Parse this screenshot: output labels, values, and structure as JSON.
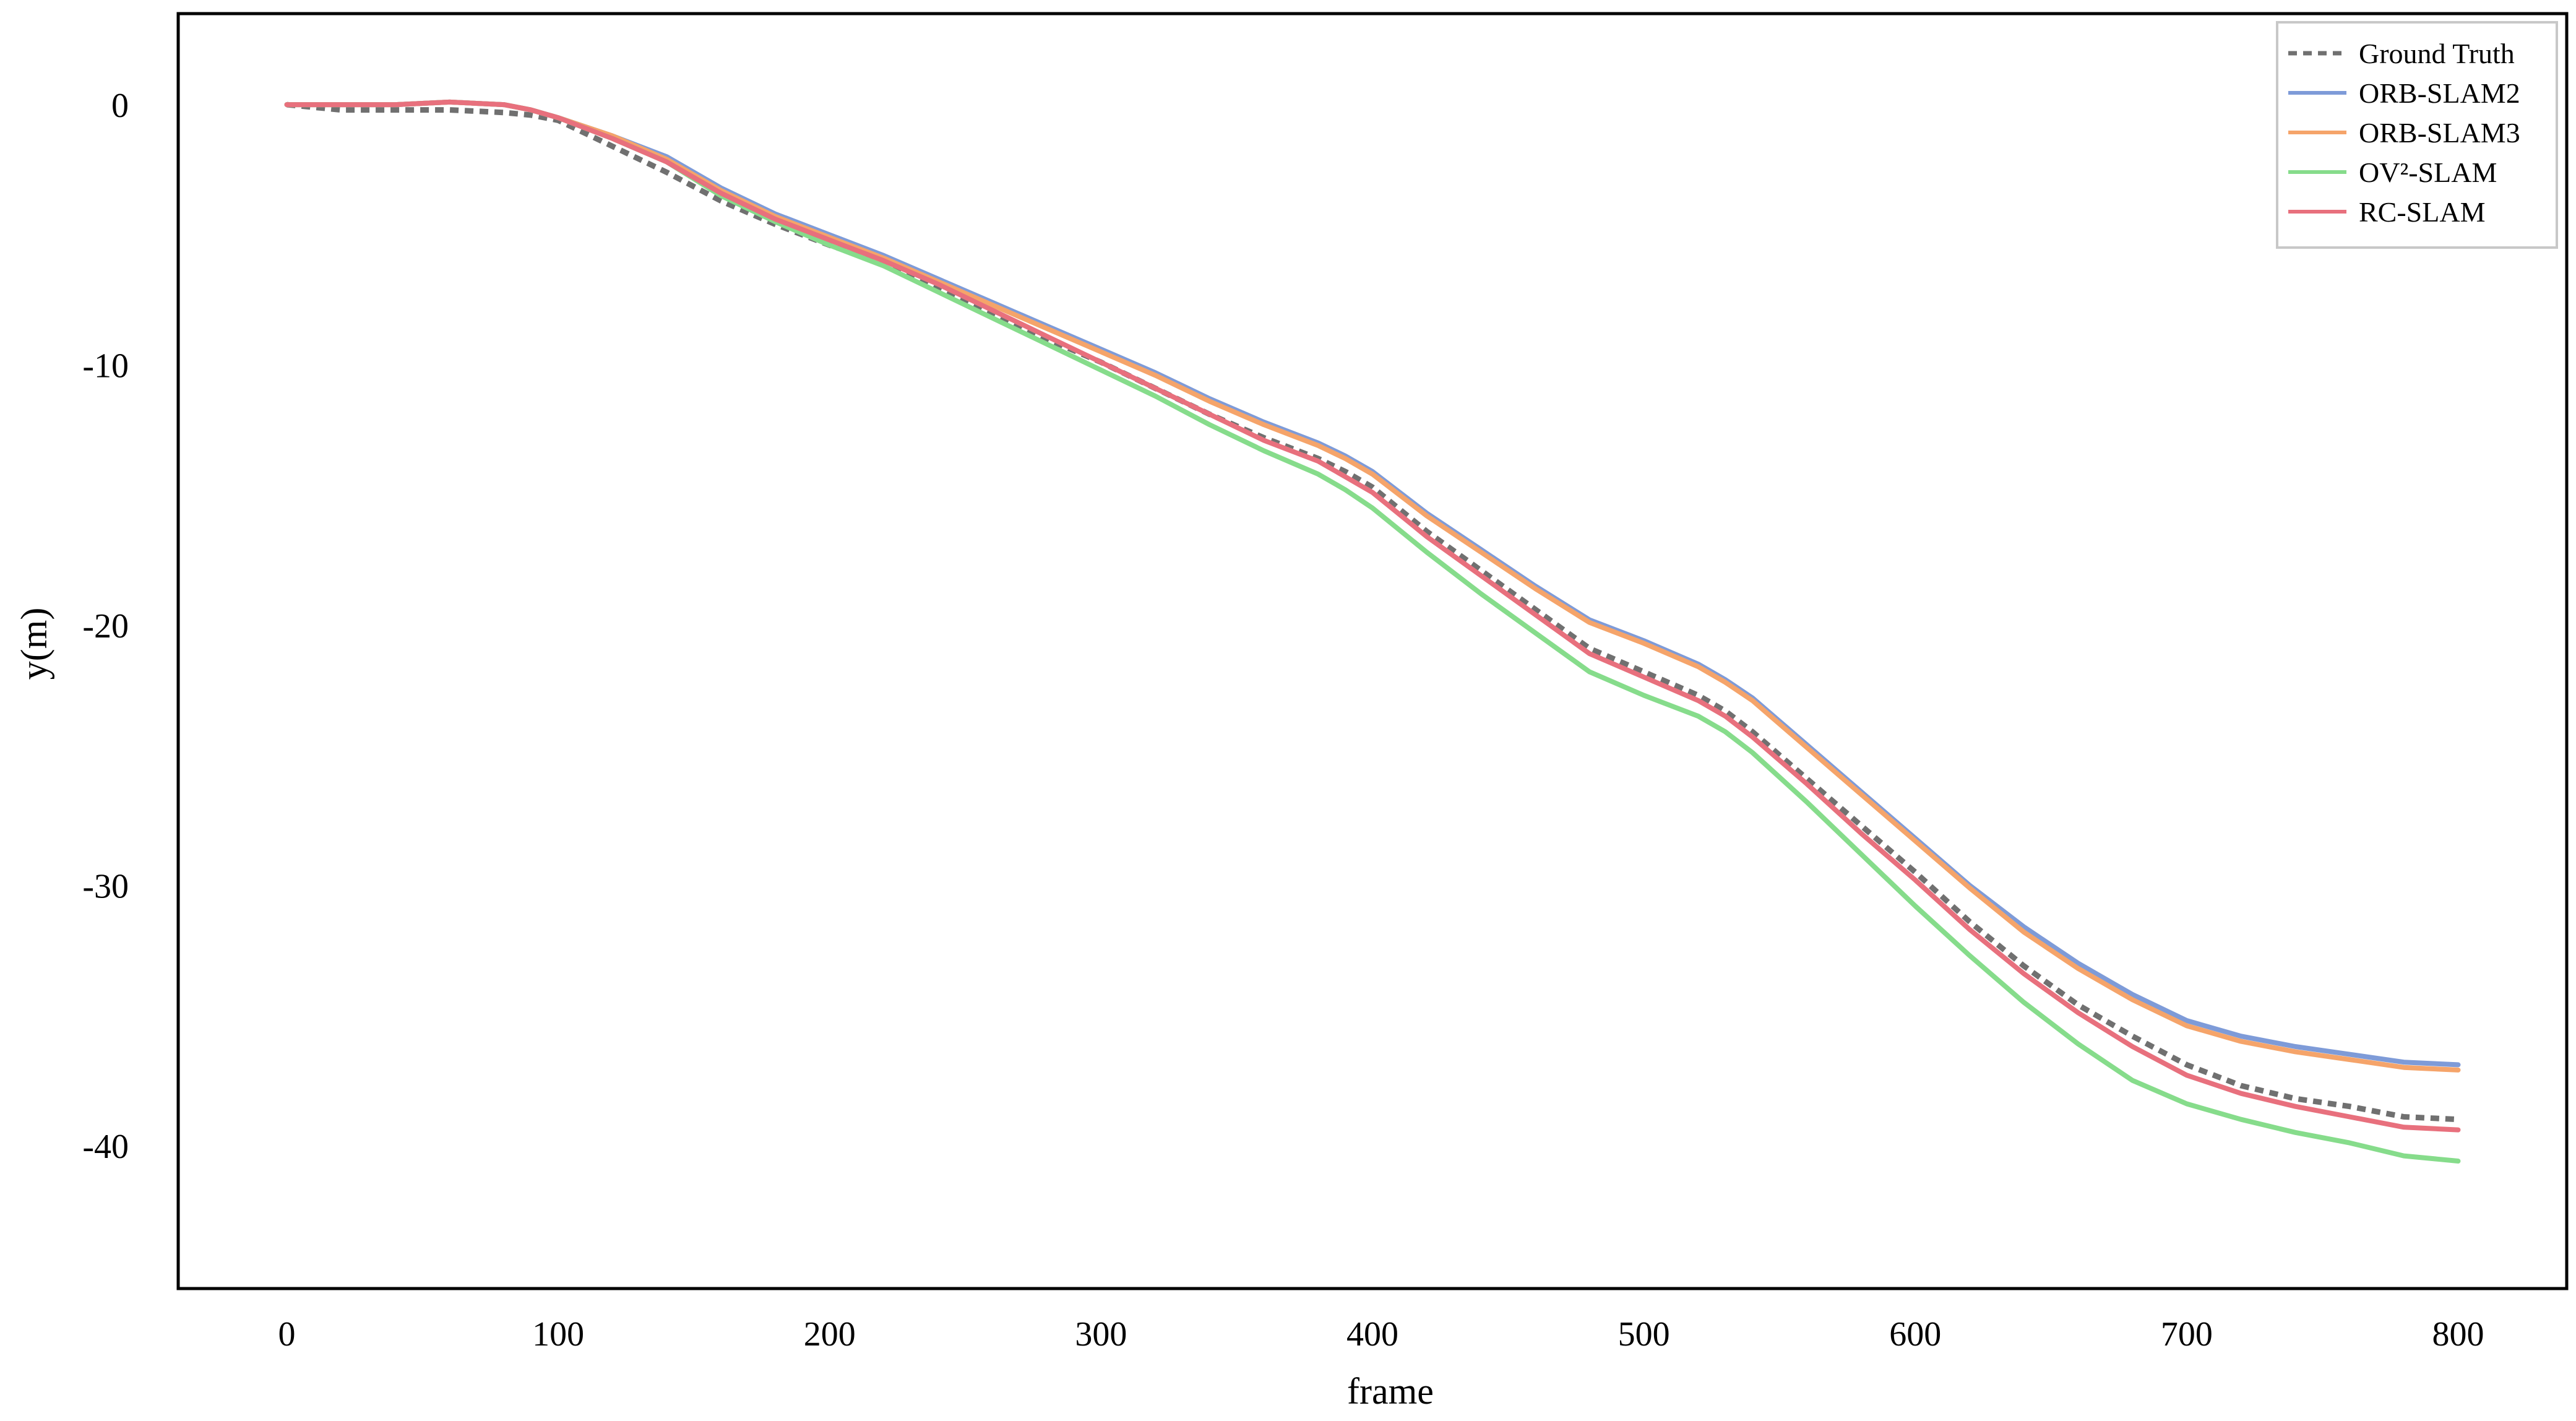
{
  "chart_data": {
    "type": "line",
    "title": "",
    "xlabel": "frame",
    "ylabel": "y(m)",
    "xlim": [
      -40,
      840
    ],
    "ylim": [
      -45.5,
      3.5
    ],
    "xticks": [
      0,
      100,
      200,
      300,
      400,
      500,
      600,
      700,
      800
    ],
    "yticks": [
      0,
      -10,
      -20,
      -30,
      -40
    ],
    "xtick_labels": [
      "0",
      "100",
      "200",
      "300",
      "400",
      "500",
      "600",
      "700",
      "800"
    ],
    "ytick_labels": [
      "0",
      "-10",
      "-20",
      "-30",
      "-40"
    ],
    "grid": false,
    "legend_position": "top-right",
    "series": [
      {
        "name": "Ground Truth",
        "color": "#707070",
        "style": "dashed",
        "x": [
          0,
          20,
          40,
          60,
          80,
          90,
          100,
          120,
          140,
          160,
          180,
          200,
          220,
          240,
          260,
          280,
          300,
          320,
          340,
          360,
          380,
          390,
          400,
          420,
          440,
          460,
          480,
          500,
          520,
          530,
          540,
          560,
          580,
          600,
          620,
          640,
          660,
          680,
          700,
          720,
          740,
          760,
          780,
          800
        ],
        "y": [
          0,
          -0.2,
          -0.2,
          -0.2,
          -0.3,
          -0.4,
          -0.6,
          -1.6,
          -2.6,
          -3.7,
          -4.6,
          -5.4,
          -6.1,
          -7.1,
          -8.0,
          -9.0,
          -9.9,
          -10.9,
          -11.9,
          -12.8,
          -13.6,
          -14.1,
          -14.7,
          -16.4,
          -17.9,
          -19.4,
          -20.9,
          -21.8,
          -22.7,
          -23.3,
          -24.1,
          -25.9,
          -27.7,
          -29.5,
          -31.4,
          -33.1,
          -34.6,
          -35.8,
          -36.9,
          -37.7,
          -38.2,
          -38.5,
          -38.9,
          -39.0
        ]
      },
      {
        "name": "ORB-SLAM2",
        "color": "#7e9bd8",
        "style": "solid",
        "x": [
          0,
          20,
          40,
          60,
          80,
          90,
          100,
          120,
          140,
          160,
          180,
          200,
          220,
          240,
          260,
          280,
          300,
          320,
          340,
          360,
          380,
          390,
          400,
          420,
          440,
          460,
          480,
          500,
          520,
          530,
          540,
          560,
          580,
          600,
          620,
          640,
          660,
          680,
          700,
          720,
          740,
          760,
          780,
          800
        ],
        "y": [
          0,
          0,
          0,
          0.1,
          0,
          -0.2,
          -0.5,
          -1.2,
          -2.0,
          -3.2,
          -4.2,
          -5.0,
          -5.8,
          -6.7,
          -7.6,
          -8.5,
          -9.4,
          -10.3,
          -11.3,
          -12.2,
          -13.0,
          -13.5,
          -14.1,
          -15.7,
          -17.1,
          -18.5,
          -19.8,
          -20.6,
          -21.5,
          -22.1,
          -22.8,
          -24.6,
          -26.4,
          -28.2,
          -30.0,
          -31.6,
          -33.0,
          -34.2,
          -35.2,
          -35.8,
          -36.2,
          -36.5,
          -36.8,
          -36.9
        ]
      },
      {
        "name": "ORB-SLAM3",
        "color": "#f5a46a",
        "style": "solid",
        "x": [
          0,
          20,
          40,
          60,
          80,
          90,
          100,
          120,
          140,
          160,
          180,
          200,
          220,
          240,
          260,
          280,
          300,
          320,
          340,
          360,
          380,
          390,
          400,
          420,
          440,
          460,
          480,
          500,
          520,
          530,
          540,
          560,
          580,
          600,
          620,
          640,
          660,
          680,
          700,
          720,
          740,
          760,
          780,
          800
        ],
        "y": [
          0,
          0,
          0,
          0.1,
          0,
          -0.2,
          -0.5,
          -1.2,
          -2.1,
          -3.3,
          -4.3,
          -5.1,
          -5.9,
          -6.8,
          -7.7,
          -8.6,
          -9.5,
          -10.4,
          -11.4,
          -12.3,
          -13.1,
          -13.6,
          -14.2,
          -15.8,
          -17.2,
          -18.6,
          -19.9,
          -20.7,
          -21.6,
          -22.2,
          -22.9,
          -24.7,
          -26.5,
          -28.3,
          -30.1,
          -31.8,
          -33.2,
          -34.4,
          -35.4,
          -36.0,
          -36.4,
          -36.7,
          -37.0,
          -37.1
        ]
      },
      {
        "name": "OV²-SLAM",
        "color": "#86dc8b",
        "style": "solid",
        "x": [
          0,
          20,
          40,
          60,
          80,
          90,
          100,
          120,
          140,
          160,
          180,
          200,
          220,
          240,
          260,
          280,
          300,
          320,
          340,
          360,
          380,
          390,
          400,
          420,
          440,
          460,
          480,
          500,
          520,
          530,
          540,
          560,
          580,
          600,
          620,
          640,
          660,
          680,
          700,
          720,
          740,
          760,
          780,
          800
        ],
        "y": [
          0,
          0,
          0,
          0.1,
          0,
          -0.2,
          -0.5,
          -1.3,
          -2.2,
          -3.5,
          -4.5,
          -5.4,
          -6.2,
          -7.2,
          -8.2,
          -9.2,
          -10.2,
          -11.2,
          -12.3,
          -13.3,
          -14.2,
          -14.8,
          -15.5,
          -17.2,
          -18.8,
          -20.3,
          -21.8,
          -22.7,
          -23.5,
          -24.1,
          -24.9,
          -26.8,
          -28.8,
          -30.8,
          -32.7,
          -34.5,
          -36.1,
          -37.5,
          -38.4,
          -39.0,
          -39.5,
          -39.9,
          -40.4,
          -40.6
        ]
      },
      {
        "name": "RC-SLAM",
        "color": "#e8707d",
        "style": "solid",
        "x": [
          0,
          20,
          40,
          60,
          80,
          90,
          100,
          120,
          140,
          160,
          180,
          200,
          220,
          240,
          260,
          280,
          300,
          320,
          340,
          360,
          380,
          390,
          400,
          420,
          440,
          460,
          480,
          500,
          520,
          530,
          540,
          560,
          580,
          600,
          620,
          640,
          660,
          680,
          700,
          720,
          740,
          760,
          780,
          800
        ],
        "y": [
          0,
          0,
          0,
          0.1,
          0,
          -0.2,
          -0.5,
          -1.3,
          -2.2,
          -3.4,
          -4.4,
          -5.2,
          -6.0,
          -6.9,
          -7.9,
          -8.9,
          -9.9,
          -10.9,
          -11.9,
          -12.9,
          -13.7,
          -14.3,
          -14.9,
          -16.6,
          -18.1,
          -19.6,
          -21.1,
          -22.0,
          -22.9,
          -23.5,
          -24.3,
          -26.1,
          -28.0,
          -29.8,
          -31.7,
          -33.4,
          -34.9,
          -36.2,
          -37.3,
          -38.0,
          -38.5,
          -38.9,
          -39.3,
          -39.4
        ]
      }
    ]
  }
}
